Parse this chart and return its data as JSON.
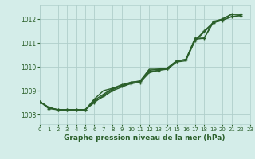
{
  "background_color": "#d4ede9",
  "grid_color": "#b0cfcb",
  "line_color": "#2a5f2a",
  "marker_color": "#2a5f2a",
  "xlabel": "Graphe pression niveau de la mer (hPa)",
  "xlim": [
    0,
    23
  ],
  "ylim": [
    1007.6,
    1012.6
  ],
  "yticks": [
    1008,
    1009,
    1010,
    1011,
    1012
  ],
  "xticks": [
    0,
    1,
    2,
    3,
    4,
    5,
    6,
    7,
    8,
    9,
    10,
    11,
    12,
    13,
    14,
    15,
    16,
    17,
    18,
    19,
    20,
    21,
    22,
    23
  ],
  "series": [
    {
      "x": [
        0,
        1,
        2,
        3,
        4,
        5,
        6,
        7,
        8,
        9,
        10,
        11,
        12,
        13,
        14,
        15,
        16,
        17,
        18,
        19,
        20,
        21,
        22
      ],
      "y": [
        1008.55,
        1008.3,
        1008.2,
        1008.2,
        1008.2,
        1008.2,
        1008.65,
        1009.0,
        1009.1,
        1009.2,
        1009.35,
        1009.4,
        1009.9,
        1009.9,
        1009.95,
        1010.25,
        1010.3,
        1011.15,
        1011.2,
        1011.85,
        1012.0,
        1012.2,
        1012.2
      ],
      "has_marker": false,
      "linewidth": 1.0
    },
    {
      "x": [
        0,
        1,
        2,
        3,
        4,
        5,
        6,
        7,
        8,
        9,
        10,
        11,
        12,
        13,
        14,
        15,
        16,
        17,
        18,
        19,
        20,
        21,
        22
      ],
      "y": [
        1008.55,
        1008.3,
        1008.2,
        1008.2,
        1008.2,
        1008.2,
        1008.55,
        1008.75,
        1009.0,
        1009.15,
        1009.3,
        1009.35,
        1009.75,
        1009.85,
        1009.9,
        1010.2,
        1010.25,
        1011.1,
        1011.45,
        1011.85,
        1011.95,
        1012.1,
        1012.15
      ],
      "has_marker": false,
      "linewidth": 1.0
    },
    {
      "x": [
        0,
        1,
        2,
        3,
        4,
        5,
        6,
        7,
        8,
        9,
        10,
        11,
        12,
        13,
        14,
        15,
        16,
        17,
        18,
        19,
        20,
        21,
        22
      ],
      "y": [
        1008.55,
        1008.3,
        1008.2,
        1008.2,
        1008.2,
        1008.2,
        1008.6,
        1008.85,
        1009.1,
        1009.25,
        1009.35,
        1009.4,
        1009.85,
        1009.9,
        1009.95,
        1010.25,
        1010.3,
        1011.2,
        1011.2,
        1011.9,
        1012.0,
        1012.2,
        1012.2
      ],
      "has_marker": true,
      "linewidth": 1.0
    },
    {
      "x": [
        0,
        1,
        2,
        3,
        4,
        5,
        6,
        7,
        8,
        9,
        10,
        11,
        12,
        13,
        14,
        15,
        16,
        17,
        18,
        19,
        20,
        21,
        22
      ],
      "y": [
        1008.55,
        1008.25,
        1008.2,
        1008.2,
        1008.2,
        1008.2,
        1008.5,
        1008.8,
        1009.05,
        1009.2,
        1009.3,
        1009.35,
        1009.8,
        1009.85,
        1009.95,
        1010.25,
        1010.3,
        1011.1,
        1011.5,
        1011.85,
        1011.95,
        1012.1,
        1012.15
      ],
      "has_marker": true,
      "linewidth": 1.0
    }
  ],
  "marker_size": 3.5,
  "ytick_fontsize": 5.5,
  "xtick_fontsize": 5.0,
  "xlabel_fontsize": 6.5
}
